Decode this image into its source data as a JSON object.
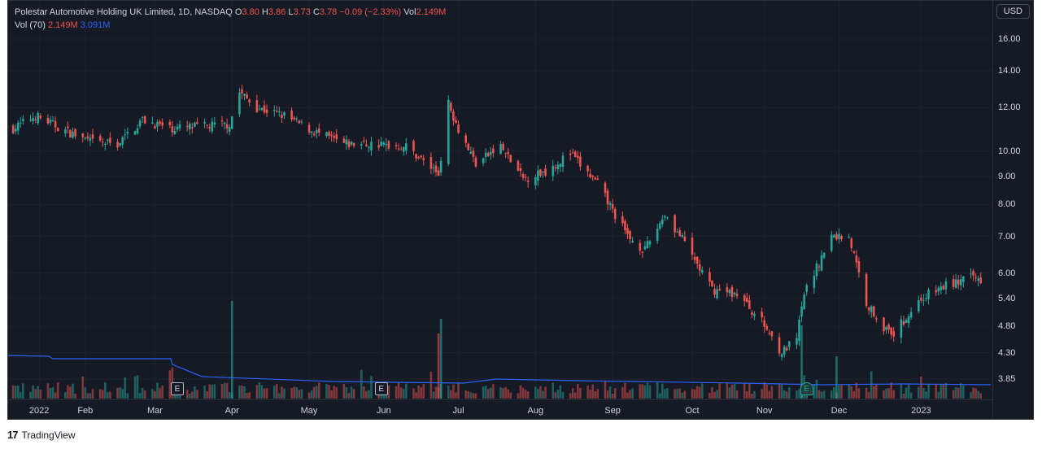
{
  "legend": {
    "symbol": "Polestar Automotive Holding UK Limited, 1D, NASDAQ",
    "o_label": "O",
    "o_value": "3.80",
    "h_label": "H",
    "h_value": "3.86",
    "l_label": "L",
    "l_value": "3.73",
    "c_label": "C",
    "c_value": "3.78",
    "change": "−0.09 (−2.33%)",
    "vol_label": "Vol",
    "vol_value": "2.149M",
    "vol_ma_label": "Vol (70)",
    "vol_ma_value1": "2.149M",
    "vol_ma_value2": "3.091M"
  },
  "currency": "USD",
  "brand": "TradingView",
  "earnings_marker_label": "E",
  "colors": {
    "up": "#26a69a",
    "down": "#ef5350",
    "vol_ma": "#2962ff",
    "background": "#161a25"
  },
  "chart_data": {
    "type": "candlestick",
    "scale": "log",
    "price_ticks": [
      "16.00",
      "14.00",
      "12.00",
      "10.00",
      "9.00",
      "8.00",
      "7.00",
      "6.00",
      "5.40",
      "4.80",
      "4.30",
      "3.85"
    ],
    "month_ticks": [
      "2022",
      "Feb",
      "Mar",
      "Apr",
      "May",
      "Jun",
      "Jul",
      "Aug",
      "Sep",
      "Oct",
      "Nov",
      "Dec",
      "2023"
    ],
    "ylim": [
      3.4,
      17.5
    ],
    "close_path": [
      [
        "2022-01-03",
        11.0
      ],
      [
        "2022-01-12",
        11.6
      ],
      [
        "2022-01-24",
        10.9
      ],
      [
        "2022-02-03",
        10.4
      ],
      [
        "2022-02-14",
        10.3
      ],
      [
        "2022-02-24",
        11.4
      ],
      [
        "2022-03-07",
        11.0
      ],
      [
        "2022-03-21",
        11.1
      ],
      [
        "2022-03-31",
        11.2
      ],
      [
        "2022-04-04",
        12.8
      ],
      [
        "2022-04-11",
        12.0
      ],
      [
        "2022-04-22",
        11.6
      ],
      [
        "2022-05-03",
        10.9
      ],
      [
        "2022-05-16",
        10.3
      ],
      [
        "2022-05-27",
        10.3
      ],
      [
        "2022-06-10",
        10.2
      ],
      [
        "2022-06-23",
        9.1
      ],
      [
        "2022-06-27",
        12.2
      ],
      [
        "2022-07-01",
        11.0
      ],
      [
        "2022-07-08",
        9.5
      ],
      [
        "2022-07-18",
        10.2
      ],
      [
        "2022-07-27",
        8.9
      ],
      [
        "2022-08-05",
        9.2
      ],
      [
        "2022-08-15",
        9.9
      ],
      [
        "2022-08-26",
        8.7
      ],
      [
        "2022-09-07",
        7.0
      ],
      [
        "2022-09-14",
        6.6
      ],
      [
        "2022-09-22",
        7.7
      ],
      [
        "2022-09-30",
        6.8
      ],
      [
        "2022-10-11",
        5.6
      ],
      [
        "2022-10-21",
        5.5
      ],
      [
        "2022-10-31",
        4.9
      ],
      [
        "2022-11-08",
        4.3
      ],
      [
        "2022-11-14",
        4.55
      ],
      [
        "2022-11-17",
        5.5
      ],
      [
        "2022-11-28",
        7.0
      ],
      [
        "2022-12-05",
        7.0
      ],
      [
        "2022-12-12",
        5.3
      ],
      [
        "2022-12-16",
        5.0
      ],
      [
        "2022-12-22",
        4.6
      ],
      [
        "2023-01-03",
        5.4
      ],
      [
        "2023-01-13",
        5.7
      ],
      [
        "2023-01-24",
        5.9
      ],
      [
        "2023-01-27",
        5.85
      ]
    ],
    "volume_ma_level_m": [
      3.6,
      3.6,
      3.5,
      3.4,
      3.5,
      3.4,
      3.2,
      3.1,
      3.1,
      3.0,
      3.0,
      3.1,
      3.1,
      3.1
    ],
    "earnings_dates": [
      "2022-03-10",
      "2022-05-31",
      "2022-11-18"
    ]
  }
}
